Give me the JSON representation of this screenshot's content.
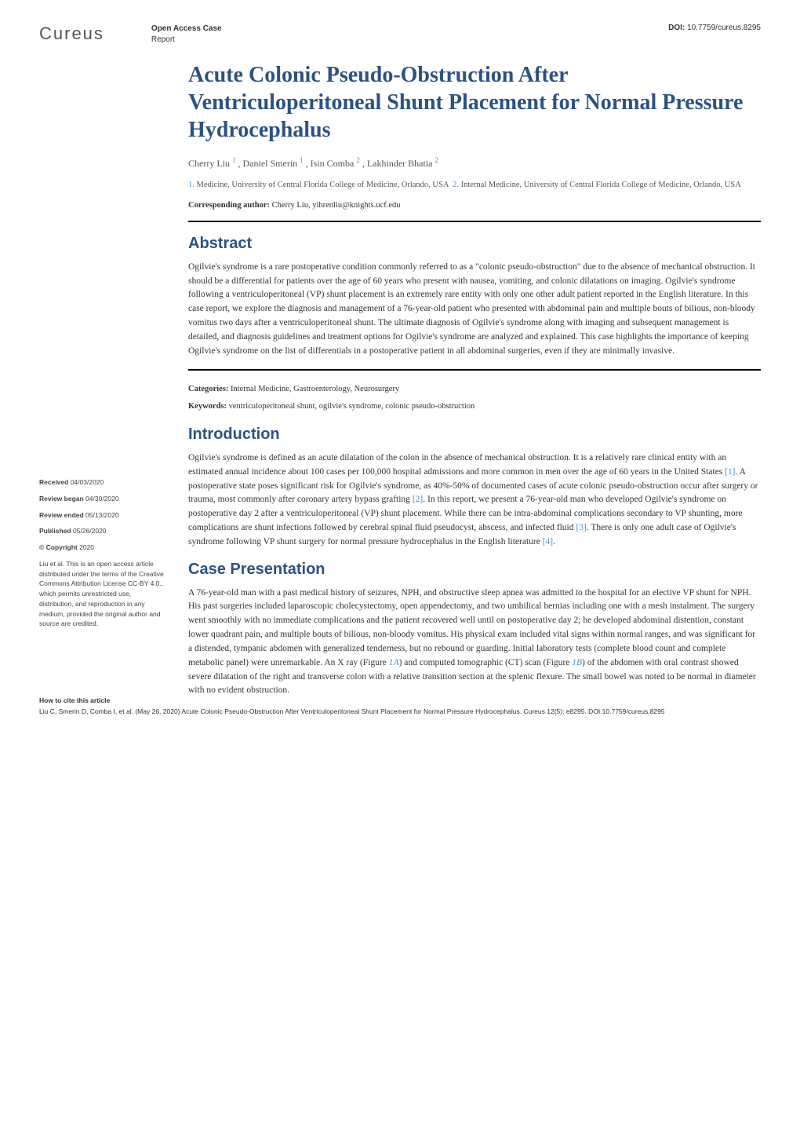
{
  "header": {
    "logo": "Cureus",
    "article_type_line1": "Open Access Case",
    "article_type_line2": "Report",
    "doi_label": "DOI:",
    "doi": "10.7759/cureus.8295"
  },
  "title": "Acute Colonic Pseudo-Obstruction After Ventriculoperitoneal Shunt Placement for Normal Pressure Hydrocephalus",
  "authors_html": "Cherry Liu <sup>1</sup> , Daniel Smerin <sup>1</sup> , Isin Comba <sup>2</sup> , Lakhinder Bhatia <sup>2</sup>",
  "affiliations_html": "<span class='num'>1.</span> Medicine, University of Central Florida College of Medicine, Orlando, USA &nbsp;<span class='num'>2.</span> Internal Medicine, University of Central Florida College of Medicine, Orlando, USA",
  "corresponding_label": "Corresponding author:",
  "corresponding_text": " Cherry Liu, yihrenliu@knights.ucf.edu",
  "abstract_heading": "Abstract",
  "abstract_text": "Ogilvie's syndrome is a rare postoperative condition commonly referred to as a \"colonic pseudo-obstruction\" due to the absence of mechanical obstruction. It should be a differential for patients over the age of 60 years who present with nausea, vomiting, and colonic dilatations on imaging. Ogilvie's syndrome following a ventriculoperitoneal (VP) shunt placement is an extremely rare entity with only one other adult patient reported in the English literature. In this case report, we explore the diagnosis and management of a 76-year-old patient who presented with abdominal pain and multiple bouts of bilious, non-bloody vomitus two days after a ventriculoperitoneal shunt. The ultimate diagnosis of Ogilvie's syndrome along with imaging and subsequent management is detailed, and diagnosis guidelines and treatment options for Ogilvie's syndrome are analyzed and explained. This case highlights the importance of keeping Ogilvie's syndrome on the list of differentials in a postoperative patient in all abdominal surgeries, even if they are minimally invasive.",
  "categories_label": "Categories:",
  "categories_text": " Internal Medicine, Gastroenterology, Neurosurgery",
  "keywords_label": "Keywords:",
  "keywords_text": " ventriculoperitoneal shunt, ogilvie's syndrome, colonic pseudo-obstruction",
  "intro_heading": "Introduction",
  "intro_html": "Ogilvie's syndrome is defined as an acute dilatation of the colon in the absence of mechanical obstruction. It is a relatively rare clinical entity with an estimated annual incidence about 100 cases per 100,000 hospital admissions and more common in men over the age of 60 years in the United States <span class='ref'>[1]</span>. A postoperative state poses significant risk for Ogilvie's syndrome, as 40%-50% of documented cases of acute colonic pseudo-obstruction occur after surgery or trauma, most commonly after coronary artery bypass grafting <span class='ref'>[2]</span>. In this report, we present a 76-year-old man who developed Ogilvie's syndrome on postoperative day 2 after a ventriculoperitoneal (VP) shunt placement. While there can be intra-abdominal complications secondary to VP shunting, more complications are shunt infections followed by cerebral spinal fluid pseudocyst, abscess, and infected fluid <span class='ref'>[3]</span>. There is only one adult case of Ogilvie's syndrome following VP shunt surgery for normal pressure hydrocephalus in the English literature <span class='ref'>[4]</span>.",
  "case_heading": "Case Presentation",
  "case_html": "A 76-year-old man with a past medical history of seizures, NPH, and obstructive sleep apnea was admitted to the hospital for an elective VP shunt for NPH. His past surgeries included laparoscopic cholecystectomy, open appendectomy, and two umbilical hernias including one with a mesh instalment. The surgery went smoothly with no immediate complications and the patient recovered well until on postoperative day 2; he developed abdominal distention, constant lower quadrant pain, and multiple bouts of bilious, non-bloody vomitus. His physical exam included vital signs within normal ranges, and was significant for a distended, tympanic abdomen with generalized tenderness, but no rebound or guarding. Initial laboratory tests (complete blood count and complete metabolic panel) were unremarkable. An X ray (Figure <span class='figref'>1A</span>) and computed tomographic (CT) scan (Figure <span class='figref'>1B</span>) of the abdomen with oral contrast showed severe dilatation of the right and transverse colon with a relative transition section at the splenic flexure. The small bowel was noted to be normal in diameter with no evident obstruction.",
  "sidebar": {
    "received_label": "Received",
    "received": " 04/03/2020",
    "review_began_label": "Review began",
    "review_began": " 04/30/2020",
    "review_ended_label": "Review ended",
    "review_ended": " 05/13/2020",
    "published_label": "Published",
    "published": " 05/26/2020",
    "copyright_label": "© Copyright",
    "copyright_year": " 2020",
    "copyright_text": "Liu et al. This is an open access article distributed under the terms of the Creative Commons Attribution License CC-BY 4.0., which permits unrestricted use, distribution, and reproduction in any medium, provided the original author and source are credited."
  },
  "footer": {
    "heading": "How to cite this article",
    "text": "Liu C, Smerin D, Comba I, et al. (May 26, 2020) Acute Colonic Pseudo-Obstruction After Ventriculoperitoneal Shunt Placement for Normal Pressure Hydrocephalus. Cureus 12(5): e8295. DOI 10.7759/cureus.8295"
  },
  "colors": {
    "heading_blue": "#2c5282",
    "link_blue": "#4a90d9",
    "text": "#333333",
    "background": "#ffffff"
  },
  "typography": {
    "title_fontsize": 28,
    "section_heading_fontsize": 20,
    "body_fontsize": 11.5,
    "sidebar_fontsize": 8.5,
    "footer_fontsize": 8.5
  }
}
